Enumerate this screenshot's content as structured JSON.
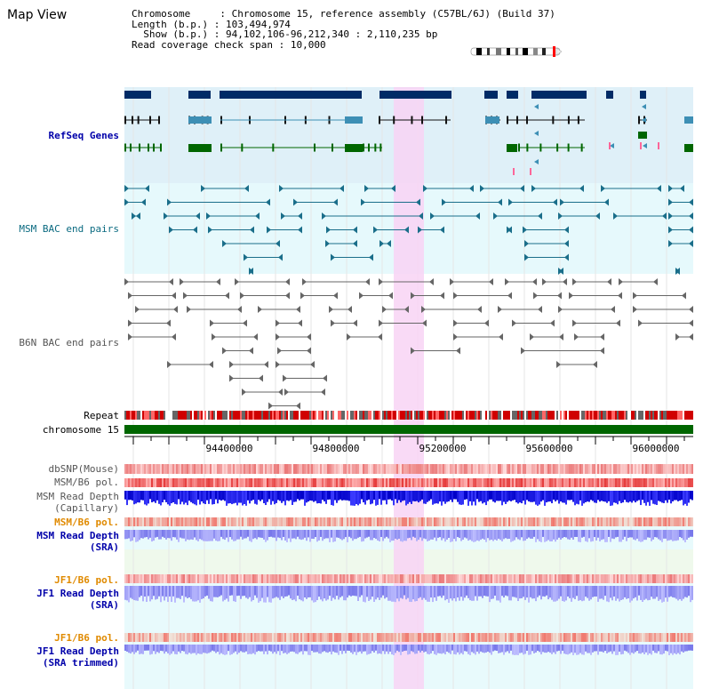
{
  "title": "Map View",
  "info": {
    "chromosome_key": "Chromosome",
    "chromosome_val": "Chromosome 15, reference assembly (C57BL/6J) (Build 37)",
    "length_key": "Length (b.p.)",
    "length_val": "103,494,974",
    "show_key": "Show (b.p.)",
    "show_val": "94,102,106-96,212,340 : 2,110,235 bp",
    "coverage_key": "Read coverage check span",
    "coverage_val": "10,000"
  },
  "tracks": {
    "refseq": "RefSeq Genes",
    "bac_msm": "MSM BAC end pairs",
    "bac_b6n": "B6N BAC end pairs",
    "repeat": "Repeat",
    "chrom": "chromosome 15",
    "dbsnp": "dbSNP(Mouse)",
    "msm_b6_pol_1": "MSM/B6 pol.",
    "msm_depth_cap_1": "MSM Read Depth",
    "msm_depth_cap_2": "(Capillary)",
    "msm_b6_pol_2": "MSM/B6 pol.",
    "msm_depth_sra_1": "MSM Read Depth",
    "msm_depth_sra_2": "(SRA)",
    "jf1_b6_pol_1": "JF1/B6 pol.",
    "jf1_depth_sra_1": "JF1 Read Depth",
    "jf1_depth_sra_2": "(SRA)",
    "jf1_b6_pol_2": "JF1/B6 pol.",
    "jf1_depth_trim_1": "JF1 Read Depth",
    "jf1_depth_trim_2": "(SRA trimmed)"
  },
  "axis_ticks": [
    "94400000",
    "94800000",
    "95200000",
    "95600000",
    "96000000"
  ],
  "colors": {
    "refseq_bg": "#dff0f8",
    "bac_bg": "#e6f9fc",
    "highlight": "#f8d4f4",
    "chrom_bar": "#006600",
    "gene_dark": "#002b66",
    "gene_teal": "#3d8fb5",
    "gene_green": "#006600",
    "msm_bac": "#1a6e8a",
    "b6n_bac": "#666666",
    "label_teal": "#0a6a80",
    "label_blue": "#0000aa",
    "label_orange": "#e08a00",
    "label_gray": "#555555"
  }
}
